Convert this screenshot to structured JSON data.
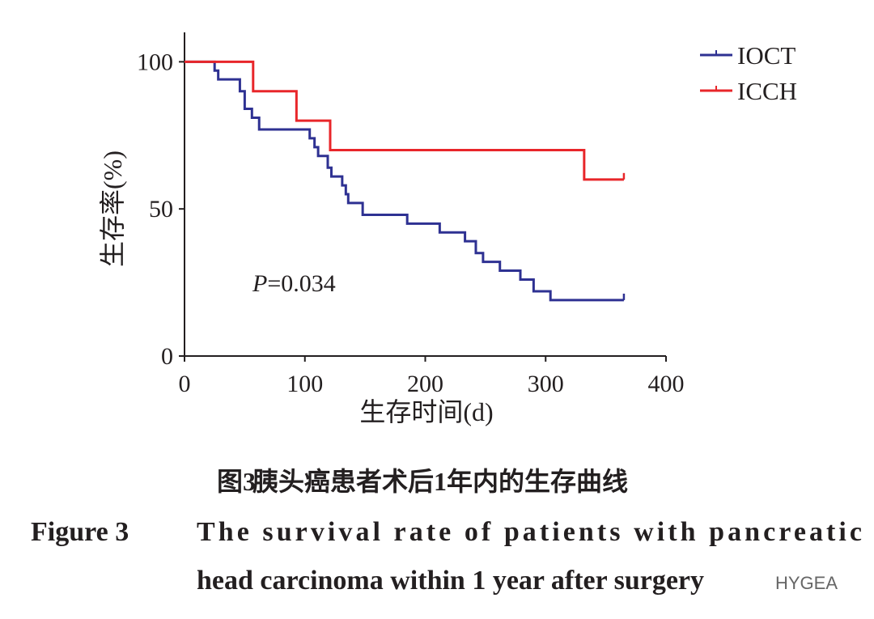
{
  "chart_data": {
    "type": "step",
    "y_label": "生存率(%)",
    "x_label": "生存时间(d)",
    "annotation": {
      "italic": "P",
      "text": "=0.034"
    },
    "xlim": [
      0,
      400
    ],
    "xticks": [
      0,
      100,
      200,
      300,
      400
    ],
    "ylim": [
      0,
      110
    ],
    "yticks": [
      0,
      50,
      100
    ],
    "legend": "upper right",
    "series": [
      {
        "name": "IOCT",
        "color": "#2e3192",
        "x": [
          0,
          25,
          28,
          46,
          50,
          56,
          62,
          104,
          108,
          111,
          119,
          122,
          131,
          134,
          136,
          148,
          185,
          212,
          233,
          242,
          248,
          262,
          279,
          290,
          304,
          365
        ],
        "values": [
          100,
          97,
          94,
          90,
          84,
          81,
          77,
          74,
          71,
          68,
          64,
          61,
          58,
          55,
          52,
          48,
          45,
          42,
          39,
          35,
          32,
          29,
          26,
          22,
          19,
          19
        ]
      },
      {
        "name": "ICCH",
        "color": "#e8262a",
        "x": [
          0,
          57,
          93,
          121,
          332,
          365
        ],
        "values": [
          100,
          90,
          80,
          70,
          60,
          60
        ]
      }
    ]
  },
  "caption": {
    "cn_label": "图3",
    "cn_text": "胰头癌患者术后1年内的生存曲线",
    "en_label": "Figure 3",
    "en_line1": "The survival rate of patients with pancreatic",
    "en_line2": "head carcinoma within 1 year after surgery"
  },
  "watermark": "HYGEA"
}
